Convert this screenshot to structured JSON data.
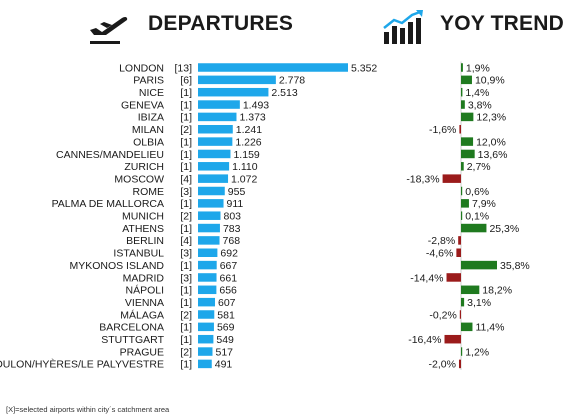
{
  "header": {
    "departures_title": "DEPARTURES",
    "yoy_title": "YOY TREND",
    "departures_icon": "airplane-departure-icon",
    "yoy_icon": "rising-bar-chart-icon"
  },
  "footnote": "[X]=selected airports within city´s catchment area",
  "colors": {
    "departure_bar": "#1ea7ea",
    "positive_bar": "#1f7a1f",
    "negative_bar": "#9b1b1b"
  },
  "chart_data": [
    {
      "type": "bar",
      "orientation": "horizontal",
      "title": "DEPARTURES",
      "categories": [
        "LONDON",
        "PARIS",
        "NICE",
        "GENEVA",
        "IBIZA",
        "MILAN",
        "OLBIA",
        "CANNES/MANDELIEU",
        "ZURICH",
        "MOSCOW",
        "ROME",
        "PALMA DE MALLORCA",
        "MUNICH",
        "ATHENS",
        "BERLIN",
        "ISTANBUL",
        "MYKONOS ISLAND",
        "MADRID",
        "NÁPOLI",
        "VIENNA",
        "MÁLAGA",
        "BARCELONA",
        "STUTTGART",
        "PRAGUE",
        "TOULON/HYÈRES/LE PALYVESTRE"
      ],
      "airport_counts": [
        "[13]",
        "[6]",
        "[1]",
        "[1]",
        "[1]",
        "[2]",
        "[1]",
        "[1]",
        "[1]",
        "[4]",
        "[3]",
        "[1]",
        "[2]",
        "[1]",
        "[4]",
        "[3]",
        "[1]",
        "[3]",
        "[1]",
        "[1]",
        "[2]",
        "[1]",
        "[1]",
        "[2]",
        "[1]"
      ],
      "values": [
        5352,
        2778,
        2513,
        1493,
        1373,
        1241,
        1226,
        1159,
        1110,
        1072,
        955,
        911,
        803,
        783,
        768,
        692,
        667,
        661,
        656,
        607,
        581,
        569,
        549,
        517,
        491
      ],
      "value_labels": [
        "5.352",
        "2.778",
        "2.513",
        "1.493",
        "1.373",
        "1.241",
        "1.226",
        "1.159",
        "1.110",
        "1.072",
        "955",
        "911",
        "803",
        "783",
        "768",
        "692",
        "667",
        "661",
        "656",
        "607",
        "581",
        "569",
        "549",
        "517",
        "491"
      ]
    },
    {
      "type": "bar",
      "orientation": "horizontal",
      "title": "YOY TREND",
      "categories": [
        "LONDON",
        "PARIS",
        "NICE",
        "GENEVA",
        "IBIZA",
        "MILAN",
        "OLBIA",
        "CANNES/MANDELIEU",
        "ZURICH",
        "MOSCOW",
        "ROME",
        "PALMA DE MALLORCA",
        "MUNICH",
        "ATHENS",
        "BERLIN",
        "ISTANBUL",
        "MYKONOS ISLAND",
        "MADRID",
        "NÁPOLI",
        "VIENNA",
        "MÁLAGA",
        "BARCELONA",
        "STUTTGART",
        "PRAGUE",
        "TOULON/HYÈRES/LE PALYVESTRE"
      ],
      "values": [
        1.9,
        10.9,
        1.4,
        3.8,
        12.3,
        -1.6,
        12.0,
        13.6,
        2.7,
        -18.3,
        0.6,
        7.9,
        0.1,
        25.3,
        -2.8,
        -4.6,
        35.8,
        -14.4,
        18.2,
        3.1,
        -0.2,
        11.4,
        -16.4,
        1.2,
        -2.0
      ],
      "value_labels": [
        "1,9%",
        "10,9%",
        "1,4%",
        "3,8%",
        "12,3%",
        "-1,6%",
        "12,0%",
        "13,6%",
        "2,7%",
        "-18,3%",
        "0,6%",
        "7,9%",
        "0,1%",
        "25,3%",
        "-2,8%",
        "-4,6%",
        "35,8%",
        "-14,4%",
        "18,2%",
        "3,1%",
        "-0,2%",
        "11,4%",
        "-16,4%",
        "1,2%",
        "-2,0%"
      ]
    }
  ]
}
